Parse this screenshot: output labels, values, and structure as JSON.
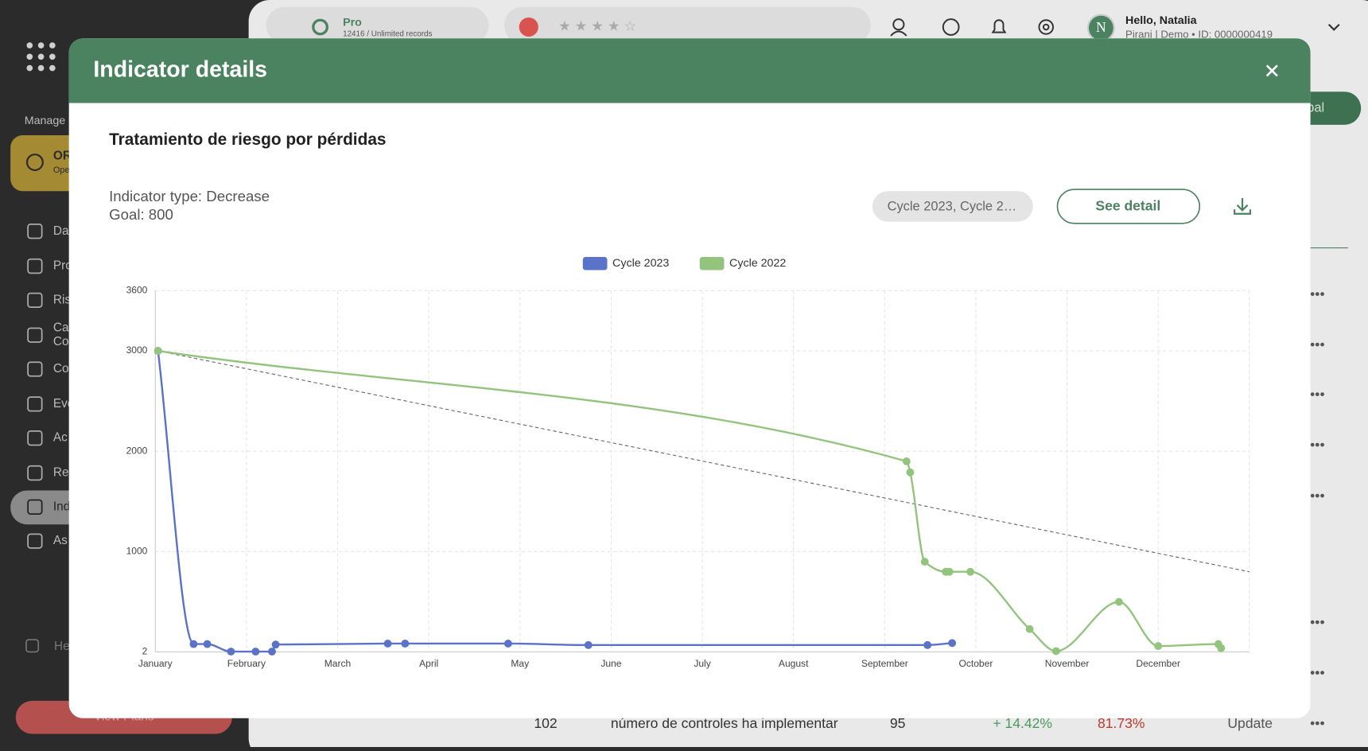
{
  "app": {
    "plan": "Pro",
    "records": "12416 / Unlimited records",
    "greeting": "Hello, Natalia",
    "account": "Pirani | Demo • ID: 0000000419",
    "sidebar": {
      "section": "Manage",
      "module": "OR",
      "module_sub": "Ope",
      "items": [
        "Da",
        "Pro",
        "Ris",
        "Ca",
        "Co",
        "Co",
        "Eve",
        "Ac",
        "Re",
        "Ind",
        "As"
      ],
      "help": "He",
      "button": "View Plans"
    },
    "primary_button": "bal",
    "table_row": [
      "102",
      "número de controles ha implementar",
      "95",
      "+ 14.42%",
      "81.73%",
      "Update"
    ]
  },
  "modal": {
    "title": "Indicator details",
    "indicator_name": "Tratamiento de riesgo por pérdidas",
    "indicator_type": "Indicator type: Decrease",
    "goal": "Goal: 800",
    "cycle_filter": "Cycle 2023, Cycle 2…",
    "button": "See detail"
  },
  "chart_data": {
    "type": "line",
    "xlim": [
      0,
      12
    ],
    "xticks": [
      {
        "value": 0,
        "label": "January"
      },
      {
        "value": 1,
        "label": "February"
      },
      {
        "value": 2,
        "label": "March"
      },
      {
        "value": 3,
        "label": "April"
      },
      {
        "value": 4,
        "label": "May"
      },
      {
        "value": 5,
        "label": "June"
      },
      {
        "value": 6,
        "label": "July"
      },
      {
        "value": 7,
        "label": "August"
      },
      {
        "value": 8,
        "label": "September"
      },
      {
        "value": 9,
        "label": "October"
      },
      {
        "value": 10,
        "label": "November"
      },
      {
        "value": 11,
        "label": "December"
      }
    ],
    "ylim": [
      2,
      3600
    ],
    "yticks": [
      2,
      1000,
      2000,
      3000,
      3600
    ],
    "grid": true,
    "legend": "top",
    "series": [
      {
        "name": "Cycle 2023",
        "color": "#5a72c8",
        "x": [
          0.03,
          0.42,
          0.57,
          0.83,
          1.1,
          1.28,
          1.32,
          2.55,
          2.74,
          3.87,
          4.75,
          8.47,
          8.74
        ],
        "values": [
          3000,
          80,
          80,
          5,
          5,
          5,
          75,
          85,
          85,
          85,
          70,
          70,
          90
        ]
      },
      {
        "name": "Cycle 2022",
        "color": "#93c47d",
        "x": [
          0.03,
          8.24,
          8.28,
          8.44,
          8.67,
          8.71,
          8.94,
          9.59,
          9.88,
          10.57,
          11.0,
          11.66,
          11.69
        ],
        "values": [
          3000,
          1900,
          1790,
          900,
          800,
          800,
          800,
          230,
          10,
          500,
          60,
          80,
          40
        ]
      }
    ],
    "trend": {
      "x": [
        0.03,
        12
      ],
      "values": [
        3000,
        800
      ],
      "color": "#666666"
    }
  }
}
